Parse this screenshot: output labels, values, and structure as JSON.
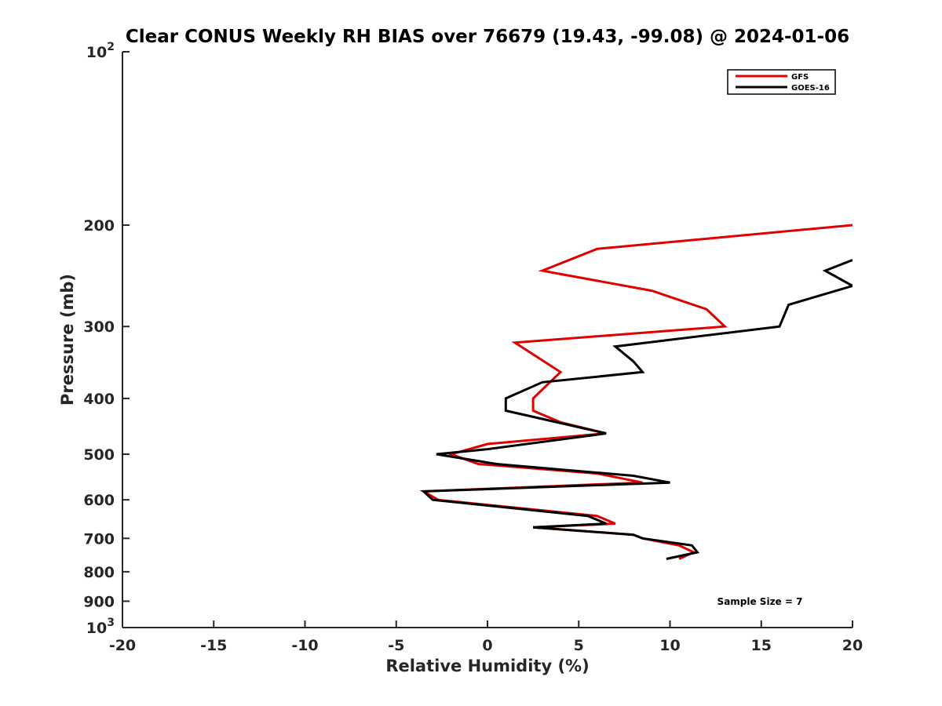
{
  "chart_data": {
    "type": "line",
    "title": "Clear CONUS Weekly RH BIAS over 76679 (19.43, -99.08) @ 2024-01-06",
    "xlabel": "Relative Humidity (%)",
    "ylabel": "Pressure (mb)",
    "xlim": [
      -20,
      20
    ],
    "ylim": [
      100,
      1000
    ],
    "y_scale": "log",
    "y_reversed": true,
    "x_ticks": [
      "-20",
      "-15",
      "-10",
      "-5",
      "0",
      "5",
      "10",
      "15",
      "20"
    ],
    "y_ticks": [
      {
        "value": 100,
        "base": "10",
        "exp": "2"
      },
      {
        "value": 200,
        "base": "200",
        "exp": ""
      },
      {
        "value": 300,
        "base": "300",
        "exp": ""
      },
      {
        "value": 400,
        "base": "400",
        "exp": ""
      },
      {
        "value": 500,
        "base": "500",
        "exp": ""
      },
      {
        "value": 600,
        "base": "600",
        "exp": ""
      },
      {
        "value": 700,
        "base": "700",
        "exp": ""
      },
      {
        "value": 800,
        "base": "800",
        "exp": ""
      },
      {
        "value": 900,
        "base": "900",
        "exp": ""
      },
      {
        "value": 1000,
        "base": "10",
        "exp": "3"
      }
    ],
    "legend_position": "top-right",
    "grid": false,
    "annotation": "Sample Size = 7",
    "series": [
      {
        "name": "GFS",
        "color": "#e00000",
        "points": [
          [
            20,
            200
          ],
          [
            6,
            220
          ],
          [
            3,
            240
          ],
          [
            9,
            260
          ],
          [
            12,
            280
          ],
          [
            13,
            300
          ],
          [
            1.5,
            320
          ],
          [
            4,
            360
          ],
          [
            2.5,
            400
          ],
          [
            2.5,
            420
          ],
          [
            4,
            440
          ],
          [
            6.5,
            460
          ],
          [
            0,
            480
          ],
          [
            -2,
            500
          ],
          [
            -0.5,
            520
          ],
          [
            6,
            540
          ],
          [
            8.5,
            560
          ],
          [
            -3.5,
            580
          ],
          [
            -2.7,
            600
          ],
          [
            6,
            640
          ],
          [
            7,
            660
          ],
          [
            2.5,
            670
          ],
          [
            8,
            690
          ],
          [
            8.5,
            700
          ],
          [
            10.5,
            720
          ],
          [
            11.3,
            740
          ],
          [
            10.5,
            760
          ]
        ]
      },
      {
        "name": "GOES-16",
        "color": "#000000",
        "points": [
          [
            20,
            230
          ],
          [
            18.5,
            240
          ],
          [
            20,
            255
          ],
          [
            16.5,
            275
          ],
          [
            16,
            300
          ],
          [
            7,
            325
          ],
          [
            8,
            345
          ],
          [
            8.5,
            360
          ],
          [
            3,
            375
          ],
          [
            1,
            400
          ],
          [
            1,
            420
          ],
          [
            6.5,
            460
          ],
          [
            0,
            490
          ],
          [
            -2.8,
            500
          ],
          [
            0.5,
            520
          ],
          [
            8,
            545
          ],
          [
            10,
            560
          ],
          [
            -3.5,
            580
          ],
          [
            -3,
            600
          ],
          [
            5.5,
            640
          ],
          [
            6.5,
            660
          ],
          [
            2.5,
            670
          ],
          [
            8,
            690
          ],
          [
            8.5,
            700
          ],
          [
            11.2,
            720
          ],
          [
            11.5,
            740
          ],
          [
            9.8,
            760
          ]
        ]
      }
    ]
  }
}
